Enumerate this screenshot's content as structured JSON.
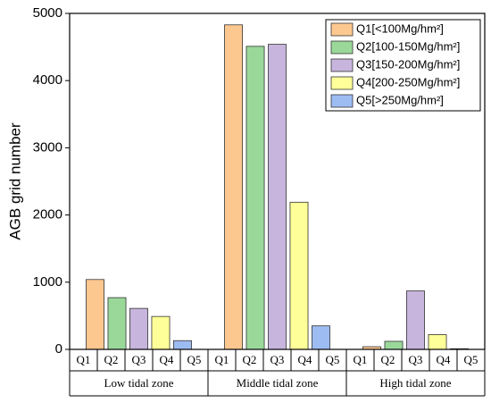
{
  "chart_data": {
    "type": "bar",
    "ylabel": "AGB grid number",
    "categories": [
      "Low tidal zone",
      "Middle tidal zone",
      "High tidal zone"
    ],
    "subcategories": [
      "Q1",
      "Q2",
      "Q3",
      "Q4",
      "Q5"
    ],
    "series": [
      {
        "name": "Q1[<100Mg/hm²]",
        "color": "#fdc890",
        "values": [
          1040,
          4830,
          40
        ]
      },
      {
        "name": "Q2[100-150Mg/hm²]",
        "color": "#9ad89a",
        "values": [
          770,
          4510,
          120
        ]
      },
      {
        "name": "Q3[150-200Mg/hm²]",
        "color": "#c7b5dd",
        "values": [
          610,
          4540,
          870
        ]
      },
      {
        "name": "Q4[200-250Mg/hm²]",
        "color": "#ffff99",
        "values": [
          490,
          2190,
          220
        ]
      },
      {
        "name": "Q5[>250Mg/hm²]",
        "color": "#9dbcf2",
        "values": [
          130,
          350,
          10
        ]
      }
    ],
    "ylim": [
      0,
      5000
    ],
    "yticks": [
      0,
      1000,
      2000,
      3000,
      4000,
      5000
    ],
    "legend": "upper right"
  }
}
